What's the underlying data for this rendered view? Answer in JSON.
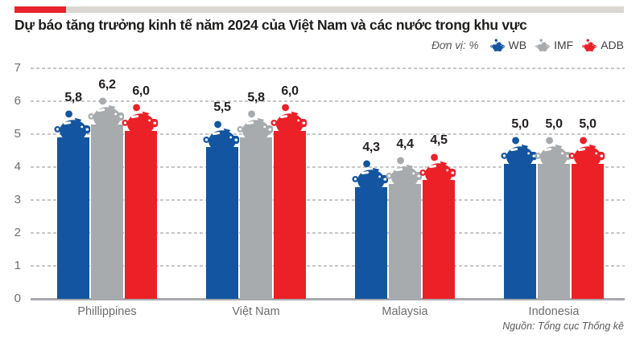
{
  "header": {
    "title": "Dự báo tăng trưởng kinh tế năm 2024 của Việt Nam và các nước trong khu vực",
    "accent_red_color": "#E8232C",
    "accent_gray_color": "#DAD7D3"
  },
  "legend": {
    "unit_label": "Đơn vị: %",
    "marker_icon": "piggy-bank-icon",
    "items": [
      {
        "label": "WB",
        "color": "#1355A0"
      },
      {
        "label": "IMF",
        "color": "#A7ABAE"
      },
      {
        "label": "ADB",
        "color": "#EC2027"
      }
    ]
  },
  "chart_data": {
    "type": "bar",
    "title": "Dự báo tăng trưởng kinh tế năm 2024 của Việt Nam và các nước trong khu vực",
    "unit": "%",
    "categories": [
      "Phillippines",
      "Việt Nam",
      "Malaysia",
      "Indonesia"
    ],
    "series": [
      {
        "name": "WB",
        "color": "#1355A0",
        "values": [
          5.8,
          5.5,
          4.3,
          5.0
        ],
        "labels": [
          "5,8",
          "5,5",
          "4,3",
          "5,0"
        ]
      },
      {
        "name": "IMF",
        "color": "#A7ABAE",
        "values": [
          6.2,
          5.8,
          4.4,
          5.0
        ],
        "labels": [
          "6,2",
          "5,8",
          "4,4",
          "5,0"
        ]
      },
      {
        "name": "ADB",
        "color": "#EC2027",
        "values": [
          6.0,
          6.0,
          4.5,
          5.0
        ],
        "labels": [
          "6,0",
          "6,0",
          "4,5",
          "5,0"
        ]
      }
    ],
    "ylim": [
      0,
      7
    ],
    "yticks": [
      0,
      1,
      2,
      3,
      4,
      5,
      6,
      7
    ],
    "grid": "horizontal-dashed",
    "legend_position": "top-right",
    "bar_marker_icon": "piggy-bank-icon",
    "decimal_separator": ","
  },
  "footer": {
    "source": "Nguồn: Tổng cục Thống kê"
  }
}
